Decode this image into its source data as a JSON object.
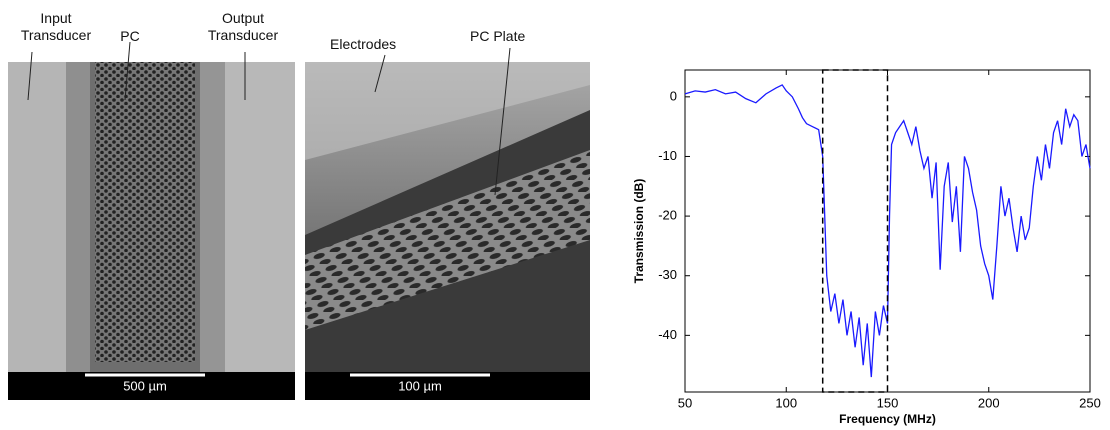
{
  "sem_images": [
    {
      "labels": [
        "Input Transducer",
        "PC",
        "Output Transducer"
      ],
      "scale_bar": "500 µm"
    },
    {
      "labels": [
        "Electrodes",
        "PC Plate"
      ],
      "scale_bar": "100 µm"
    }
  ],
  "chart_data": {
    "type": "line",
    "xlabel": "Frequency (MHz)",
    "ylabel": "Transmission (dB)",
    "xlim": [
      50,
      250
    ],
    "ylim": [
      -49.5,
      4.5
    ],
    "xticks": [
      50,
      100,
      150,
      200,
      250
    ],
    "yticks": [
      0,
      -10,
      -20,
      -30,
      -40
    ],
    "highlight_x": [
      118,
      150
    ],
    "series": [
      {
        "color": "#1a1aff",
        "x": [
          50,
          55,
          60,
          65,
          70,
          75,
          80,
          85,
          90,
          95,
          98,
          100,
          103,
          106,
          108,
          110,
          113,
          116,
          118,
          119,
          120,
          122,
          124,
          126,
          128,
          130,
          132,
          134,
          136,
          138,
          140,
          142,
          144,
          146,
          148,
          150,
          151,
          152,
          154,
          156,
          158,
          160,
          162,
          164,
          166,
          168,
          170,
          172,
          174,
          176,
          178,
          180,
          182,
          184,
          186,
          188,
          190,
          192,
          194,
          196,
          198,
          200,
          202,
          204,
          206,
          208,
          210,
          212,
          214,
          216,
          218,
          220,
          222,
          224,
          226,
          228,
          230,
          232,
          234,
          236,
          238,
          240,
          242,
          244,
          246,
          248,
          250
        ],
        "values": [
          0.5,
          1,
          0.8,
          1.2,
          0.5,
          0.8,
          -0.3,
          -1,
          0.5,
          1.5,
          2,
          1,
          0,
          -2,
          -3.5,
          -4.5,
          -5,
          -5.5,
          -10,
          -20,
          -30,
          -36,
          -33,
          -38,
          -34,
          -40,
          -36,
          -42,
          -37,
          -45,
          -38,
          -47,
          -36,
          -40,
          -35,
          -38,
          -20,
          -8,
          -6,
          -5,
          -4,
          -6,
          -8,
          -5,
          -9,
          -12,
          -10,
          -17,
          -11,
          -29,
          -15,
          -11,
          -21,
          -15,
          -26,
          -10,
          -12,
          -16,
          -19,
          -25,
          -28,
          -30,
          -34,
          -25,
          -15,
          -20,
          -17,
          -22,
          -26,
          -20,
          -24,
          -22,
          -15,
          -10,
          -14,
          -8,
          -12,
          -6,
          -4,
          -8,
          -2,
          -5,
          -3,
          -4,
          -10,
          -8,
          -12
        ]
      }
    ]
  }
}
